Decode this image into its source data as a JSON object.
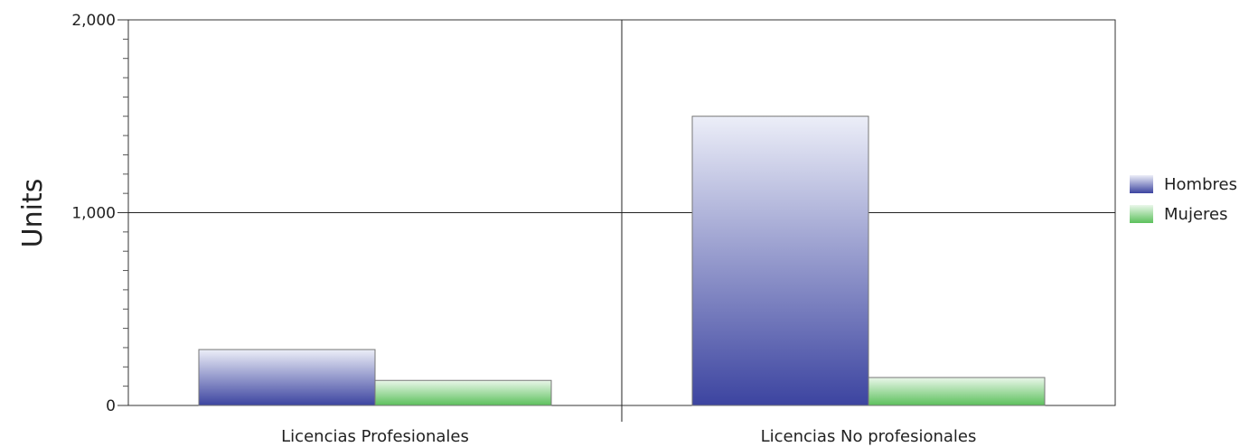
{
  "chart_data": {
    "type": "bar",
    "title": "",
    "xlabel": "",
    "ylabel": "Units",
    "ylim": [
      0,
      2000
    ],
    "yticks": [
      "0",
      "1,000",
      "2,000"
    ],
    "categories": [
      "Licencias Profesionales",
      "Licencias No profesionales"
    ],
    "series": [
      {
        "name": "Hombres",
        "values": [
          290,
          1500
        ],
        "color_top": "#eceef8",
        "color_bottom": "#3c44a0"
      },
      {
        "name": "Mujeres",
        "values": [
          130,
          145
        ],
        "color_top": "#eaf7ea",
        "color_bottom": "#5cc05c"
      }
    ],
    "grid": true,
    "legend_position": "right"
  }
}
